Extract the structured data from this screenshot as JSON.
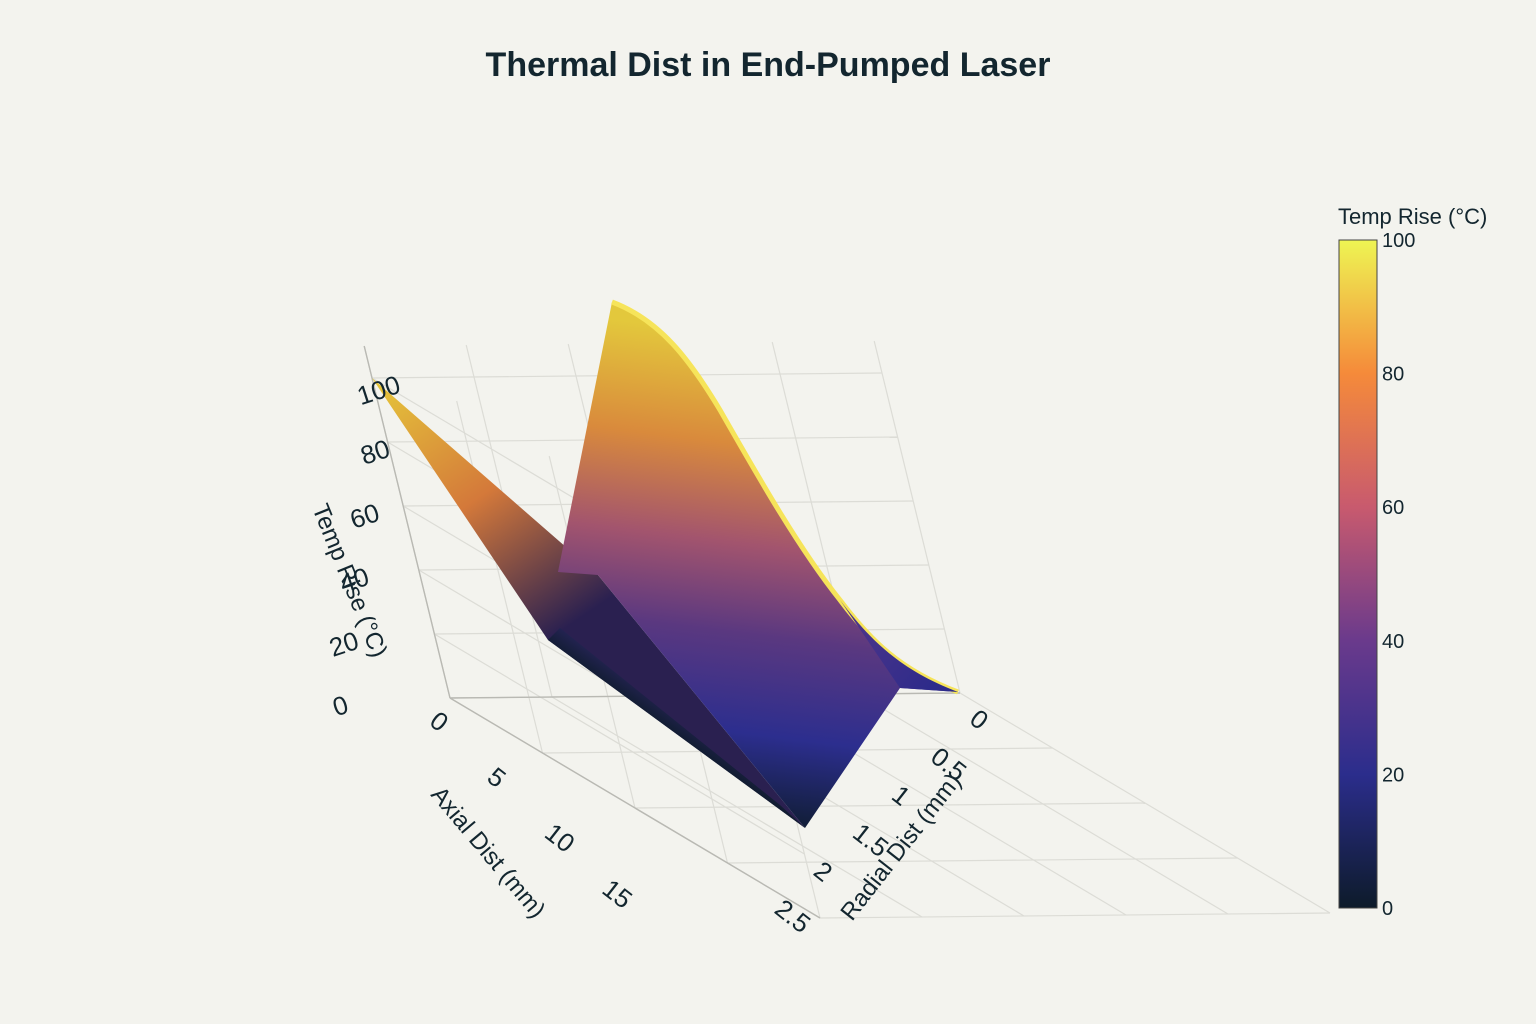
{
  "chart_data": {
    "type": "surface",
    "title": "Thermal Dist in End-Pumped Laser",
    "x_axis": {
      "title": "Radial Dist (mm)",
      "range": [
        0,
        2.5
      ],
      "ticks": [
        "0",
        "0.5",
        "1",
        "1.5",
        "2",
        "2.5"
      ]
    },
    "y_axis": {
      "title": "Axial Dist (mm)",
      "range": [
        0,
        20
      ],
      "ticks": [
        "0",
        "5",
        "10",
        "15"
      ]
    },
    "z_axis": {
      "title": "Temp Rise (°C)",
      "range": [
        0,
        100
      ],
      "ticks": [
        "0",
        "20",
        "40",
        "60",
        "80",
        "100"
      ]
    },
    "radial_mm": [
      0,
      0.5,
      1,
      1.5,
      2,
      2.5
    ],
    "axial_mm": [
      0,
      5,
      10,
      15,
      20
    ],
    "temp_rise_c_at_r0": [
      100,
      78,
      60,
      47,
      37
    ],
    "colorbar": {
      "title": "Temp Rise (°C)",
      "range": [
        0,
        100
      ],
      "ticks": [
        "0",
        "20",
        "40",
        "60",
        "80",
        "100"
      ],
      "colors": [
        "#0d1b2a",
        "#2b2d8c",
        "#6a3a8c",
        "#c85a6e",
        "#f58a3a",
        "#eef553"
      ]
    },
    "grid": true
  }
}
